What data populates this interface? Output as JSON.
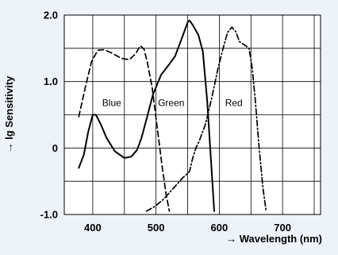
{
  "chart_data": {
    "type": "line",
    "xlabel": "→ Wavelength (nm)",
    "ylabel": "→ lg Sensitivity",
    "xlim": [
      355,
      760
    ],
    "ylim": [
      -1.0,
      2.0
    ],
    "x_ticks": [
      400,
      500,
      600,
      700
    ],
    "y_ticks": [
      -1.0,
      0,
      1.0,
      2.0
    ],
    "x_tick_labels": [
      "400",
      "500",
      "600",
      "700"
    ],
    "y_tick_labels": [
      "-1.0",
      "0",
      "1.0",
      "2.0"
    ],
    "grid": true,
    "colors": {
      "background": "#eef3f9",
      "plot_background": "#ffffff",
      "line": "#000000"
    },
    "series": [
      {
        "name": "Blue",
        "style": "dashed",
        "points": [
          [
            378,
            0.47
          ],
          [
            388,
            0.9
          ],
          [
            398,
            1.3
          ],
          [
            408,
            1.47
          ],
          [
            418,
            1.48
          ],
          [
            430,
            1.43
          ],
          [
            445,
            1.35
          ],
          [
            458,
            1.33
          ],
          [
            468,
            1.42
          ],
          [
            475,
            1.54
          ],
          [
            481,
            1.49
          ],
          [
            486,
            1.3
          ],
          [
            494,
            0.9
          ],
          [
            502,
            0.3
          ],
          [
            510,
            -0.3
          ],
          [
            516,
            -0.7
          ],
          [
            521,
            -0.95
          ]
        ]
      },
      {
        "name": "Green",
        "style": "solid",
        "points": [
          [
            378,
            -0.3
          ],
          [
            386,
            -0.1
          ],
          [
            393,
            0.25
          ],
          [
            400,
            0.5
          ],
          [
            405,
            0.5
          ],
          [
            413,
            0.35
          ],
          [
            422,
            0.15
          ],
          [
            435,
            -0.05
          ],
          [
            450,
            -0.15
          ],
          [
            461,
            -0.13
          ],
          [
            470,
            -0.03
          ],
          [
            477,
            0.15
          ],
          [
            484,
            0.4
          ],
          [
            495,
            0.8
          ],
          [
            508,
            1.1
          ],
          [
            520,
            1.25
          ],
          [
            530,
            1.38
          ],
          [
            540,
            1.63
          ],
          [
            550,
            1.89
          ],
          [
            553,
            1.92
          ],
          [
            558,
            1.85
          ],
          [
            567,
            1.7
          ],
          [
            574,
            1.45
          ],
          [
            581,
            0.7
          ],
          [
            587,
            -0.2
          ],
          [
            592,
            -0.95
          ]
        ]
      },
      {
        "name": "Red",
        "style": "dashdot",
        "points": [
          [
            485,
            -0.95
          ],
          [
            498,
            -0.88
          ],
          [
            512,
            -0.77
          ],
          [
            528,
            -0.6
          ],
          [
            542,
            -0.45
          ],
          [
            548,
            -0.4
          ],
          [
            553,
            -0.35
          ],
          [
            558,
            -0.15
          ],
          [
            563,
            0.0
          ],
          [
            568,
            0.1
          ],
          [
            578,
            0.35
          ],
          [
            588,
            0.75
          ],
          [
            598,
            1.2
          ],
          [
            606,
            1.5
          ],
          [
            613,
            1.74
          ],
          [
            620,
            1.82
          ],
          [
            626,
            1.75
          ],
          [
            632,
            1.6
          ],
          [
            640,
            1.55
          ],
          [
            647,
            1.5
          ],
          [
            652,
            1.2
          ],
          [
            657,
            0.7
          ],
          [
            663,
            0.0
          ],
          [
            669,
            -0.6
          ],
          [
            674,
            -0.95
          ]
        ]
      }
    ],
    "labels": [
      {
        "text": "Blue",
        "x": 430,
        "y": 0.68
      },
      {
        "text": "Green",
        "x": 524,
        "y": 0.68
      },
      {
        "text": "Red",
        "x": 623,
        "y": 0.68
      }
    ]
  }
}
